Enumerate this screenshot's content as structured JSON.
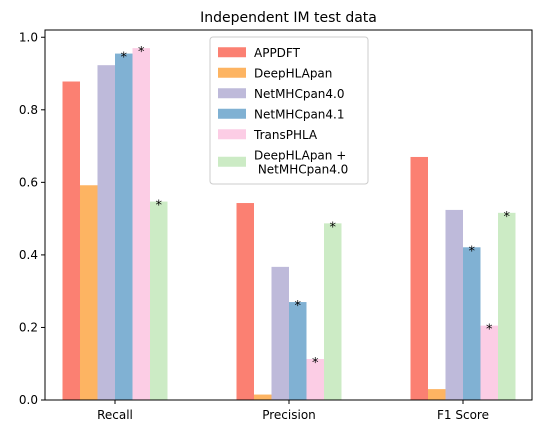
{
  "chart_data": {
    "type": "bar",
    "title": "Independent IM test data",
    "xlabel": "",
    "ylabel": "",
    "categories": [
      "Recall",
      "Precision",
      "F1 Score"
    ],
    "ylim": [
      0,
      1.02
    ],
    "yticks": [
      "0.0",
      "0.2",
      "0.4",
      "0.6",
      "0.8",
      "1.0"
    ],
    "legend_position": "top-center",
    "grid": false,
    "series": [
      {
        "name": "APPDFT",
        "color": "#fb8072",
        "values": [
          0.878,
          0.543,
          0.67
        ],
        "stars": [
          false,
          false,
          false
        ]
      },
      {
        "name": "DeepHLApan",
        "color": "#fdb462",
        "values": [
          0.592,
          0.015,
          0.03
        ],
        "stars": [
          false,
          false,
          false
        ]
      },
      {
        "name": "NetMHCpan4.0",
        "color": "#bebada",
        "values": [
          0.923,
          0.367,
          0.524
        ],
        "stars": [
          false,
          false,
          false
        ]
      },
      {
        "name": "NetMHCpan4.1",
        "color": "#80b1d3",
        "values": [
          0.955,
          0.27,
          0.421
        ],
        "stars": [
          true,
          true,
          true
        ]
      },
      {
        "name": "TransPHLA",
        "color": "#fccde5",
        "values": [
          0.97,
          0.113,
          0.205
        ],
        "stars": [
          true,
          true,
          true
        ]
      },
      {
        "name": "DeepHLApan +\n NetMHCpan4.0",
        "color": "#ccebc5",
        "values": [
          0.547,
          0.487,
          0.516
        ],
        "stars": [
          true,
          true,
          true
        ]
      }
    ],
    "star_symbol": "*"
  }
}
